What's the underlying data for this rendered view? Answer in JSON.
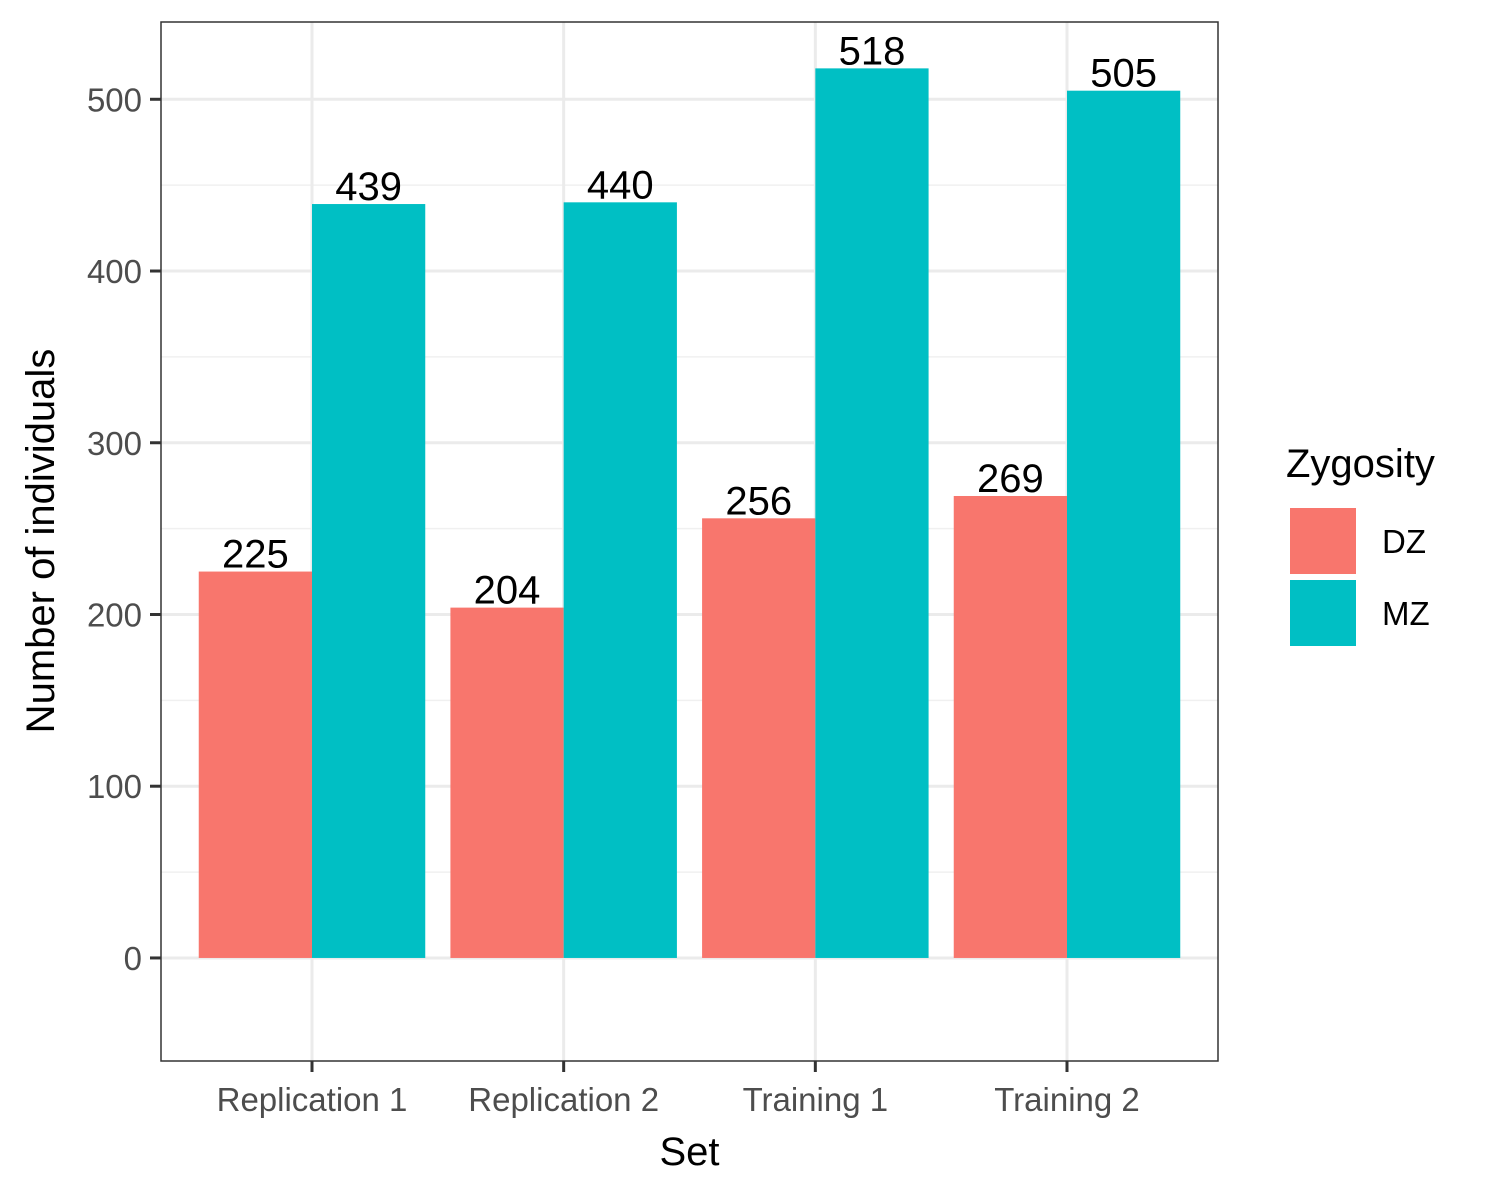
{
  "chart_data": {
    "type": "bar",
    "title": "",
    "xlabel": "Set",
    "ylabel": "Number of individuals",
    "categories": [
      "Replication 1",
      "Replication 2",
      "Training 1",
      "Training 2"
    ],
    "series": [
      {
        "name": "DZ",
        "values": [
          225,
          204,
          256,
          269
        ],
        "color": "#F8766D"
      },
      {
        "name": "MZ",
        "values": [
          439,
          440,
          518,
          505
        ],
        "color": "#00BFC4"
      }
    ],
    "ylim": [
      -60,
      545
    ],
    "yticks": [
      0,
      100,
      200,
      300,
      400,
      500
    ],
    "grid": true,
    "legend": {
      "title": "Zygosity",
      "placement": "right"
    },
    "data_labels": true
  }
}
